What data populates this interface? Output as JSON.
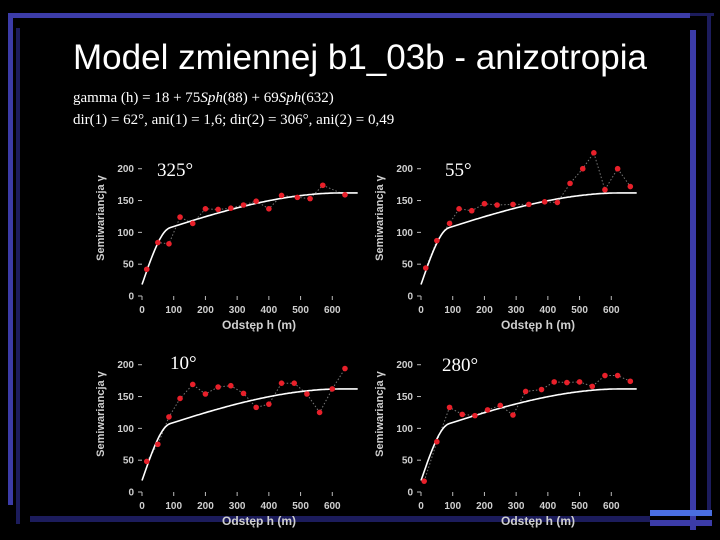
{
  "slide": {
    "title": "Model zmiennej b1_03b - anizotropia",
    "formula_line1": {
      "prefix": "gamma (h) = 18 + 75",
      "sph1": "Sph",
      "arg1": "(88) + 69",
      "sph2": "Sph",
      "arg2": "(632)"
    },
    "formula_line2": "dir(1) = 62°, ani(1) = 1,6; dir(2) = 306°, ani(2) = 0,49"
  },
  "colors": {
    "background": "#000000",
    "plot_background": "#000000",
    "point": "#e8202a",
    "model_line": "#ffffff",
    "accent_blue": "#3c3ca8",
    "accent_navy": "#1c1c5c"
  },
  "chart_data": [
    {
      "type": "scatter",
      "direction_label": "325°",
      "xlabel": "Odstęp h (m)",
      "ylabel": "Semiwariancja γ",
      "x_ticks": [
        "0",
        "100",
        "200",
        "300",
        "400",
        "500",
        "600"
      ],
      "y_ticks": [
        "0",
        "50",
        "100",
        "150",
        "200"
      ],
      "xlim": [
        0,
        700
      ],
      "ylim": [
        0,
        220
      ],
      "points": [
        [
          15,
          42
        ],
        [
          50,
          84
        ],
        [
          85,
          82
        ],
        [
          120,
          124
        ],
        [
          160,
          114
        ],
        [
          200,
          137
        ],
        [
          240,
          136
        ],
        [
          280,
          138
        ],
        [
          320,
          143
        ],
        [
          360,
          149
        ],
        [
          400,
          137
        ],
        [
          440,
          158
        ],
        [
          490,
          155
        ],
        [
          530,
          153
        ],
        [
          570,
          174
        ],
        [
          640,
          159
        ]
      ],
      "model": {
        "nugget": 18,
        "sill1": 75,
        "range1": 88,
        "sill2": 69,
        "range2": 632
      }
    },
    {
      "type": "scatter",
      "direction_label": "55°",
      "xlabel": "Odstęp h (m)",
      "ylabel": "Semiwariancja γ",
      "x_ticks": [
        "0",
        "100",
        "200",
        "300",
        "400",
        "500",
        "600"
      ],
      "y_ticks": [
        "0",
        "50",
        "100",
        "150",
        "200"
      ],
      "xlim": [
        0,
        700
      ],
      "ylim": [
        0,
        220
      ],
      "points": [
        [
          15,
          44
        ],
        [
          50,
          87
        ],
        [
          90,
          114
        ],
        [
          120,
          137
        ],
        [
          160,
          134
        ],
        [
          200,
          145
        ],
        [
          240,
          143
        ],
        [
          290,
          144
        ],
        [
          340,
          144
        ],
        [
          390,
          148
        ],
        [
          430,
          147
        ],
        [
          470,
          177
        ],
        [
          510,
          200
        ],
        [
          545,
          225
        ],
        [
          580,
          167
        ],
        [
          620,
          200
        ],
        [
          660,
          172
        ]
      ],
      "model": {
        "nugget": 18,
        "sill1": 75,
        "range1": 88,
        "sill2": 69,
        "range2": 632
      }
    },
    {
      "type": "scatter",
      "direction_label": "10°",
      "xlabel": "Odstęp h (m)",
      "ylabel": "Semiwariancja γ",
      "x_ticks": [
        "0",
        "100",
        "200",
        "300",
        "400",
        "500",
        "600"
      ],
      "y_ticks": [
        "0",
        "50",
        "100",
        "150",
        "200"
      ],
      "xlim": [
        0,
        700
      ],
      "ylim": [
        0,
        220
      ],
      "points": [
        [
          15,
          48
        ],
        [
          50,
          75
        ],
        [
          85,
          118
        ],
        [
          120,
          147
        ],
        [
          160,
          169
        ],
        [
          200,
          154
        ],
        [
          240,
          165
        ],
        [
          280,
          167
        ],
        [
          320,
          155
        ],
        [
          360,
          133
        ],
        [
          400,
          138
        ],
        [
          440,
          171
        ],
        [
          480,
          171
        ],
        [
          520,
          154
        ],
        [
          560,
          125
        ],
        [
          600,
          162
        ],
        [
          640,
          194
        ]
      ],
      "model": {
        "nugget": 18,
        "sill1": 75,
        "range1": 88,
        "sill2": 69,
        "range2": 632
      }
    },
    {
      "type": "scatter",
      "direction_label": "280°",
      "xlabel": "Odstęp h (m)",
      "ylabel": "Semiwariancja γ",
      "x_ticks": [
        "0",
        "100",
        "200",
        "300",
        "400",
        "500",
        "600"
      ],
      "y_ticks": [
        "0",
        "50",
        "100",
        "150",
        "200"
      ],
      "xlim": [
        0,
        700
      ],
      "ylim": [
        0,
        220
      ],
      "points": [
        [
          10,
          17
        ],
        [
          50,
          79
        ],
        [
          90,
          133
        ],
        [
          130,
          122
        ],
        [
          170,
          120
        ],
        [
          210,
          129
        ],
        [
          250,
          136
        ],
        [
          290,
          121
        ],
        [
          330,
          158
        ],
        [
          380,
          161
        ],
        [
          420,
          173
        ],
        [
          460,
          172
        ],
        [
          500,
          173
        ],
        [
          540,
          166
        ],
        [
          580,
          183
        ],
        [
          620,
          183
        ],
        [
          660,
          174
        ]
      ],
      "model": {
        "nugget": 18,
        "sill1": 75,
        "range1": 88,
        "sill2": 69,
        "range2": 632
      }
    }
  ]
}
